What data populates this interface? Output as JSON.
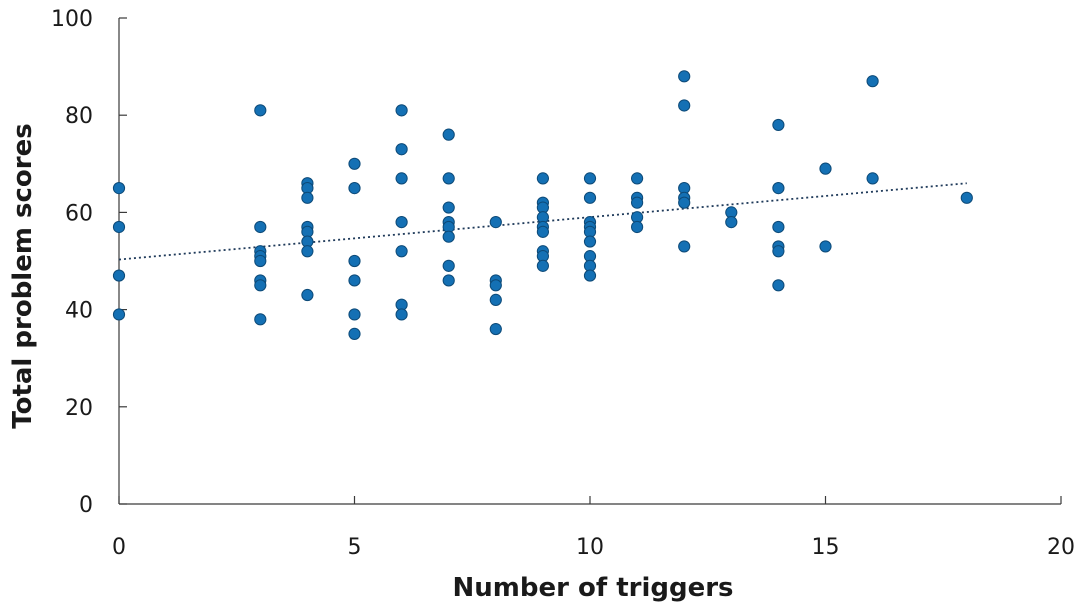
{
  "chart_data": {
    "type": "scatter",
    "xlabel": "Number of triggers",
    "ylabel": "Total problem scores",
    "xlim": [
      0,
      20
    ],
    "ylim": [
      0,
      100
    ],
    "xticks": [
      0,
      5,
      10,
      15,
      20
    ],
    "yticks": [
      0,
      20,
      40,
      60,
      80,
      100
    ],
    "grid": false,
    "marker_color": "#1470b4",
    "marker_edge_color": "#0d4a78",
    "trendline": {
      "style": "dotted",
      "color": "#1f3a5a",
      "start": [
        0,
        50.3
      ],
      "end": [
        18,
        66
      ]
    },
    "points": [
      {
        "x": 0,
        "y": 65
      },
      {
        "x": 0,
        "y": 57
      },
      {
        "x": 0,
        "y": 47
      },
      {
        "x": 0,
        "y": 39
      },
      {
        "x": 3,
        "y": 81
      },
      {
        "x": 3,
        "y": 57
      },
      {
        "x": 3,
        "y": 52
      },
      {
        "x": 3,
        "y": 51
      },
      {
        "x": 3,
        "y": 50
      },
      {
        "x": 3,
        "y": 46
      },
      {
        "x": 3,
        "y": 45
      },
      {
        "x": 3,
        "y": 38
      },
      {
        "x": 4,
        "y": 66
      },
      {
        "x": 4,
        "y": 65
      },
      {
        "x": 4,
        "y": 63
      },
      {
        "x": 4,
        "y": 57
      },
      {
        "x": 4,
        "y": 56
      },
      {
        "x": 4,
        "y": 54
      },
      {
        "x": 4,
        "y": 52
      },
      {
        "x": 4,
        "y": 43
      },
      {
        "x": 5,
        "y": 70
      },
      {
        "x": 5,
        "y": 65
      },
      {
        "x": 5,
        "y": 50
      },
      {
        "x": 5,
        "y": 46
      },
      {
        "x": 5,
        "y": 39
      },
      {
        "x": 5,
        "y": 35
      },
      {
        "x": 6,
        "y": 81
      },
      {
        "x": 6,
        "y": 73
      },
      {
        "x": 6,
        "y": 67
      },
      {
        "x": 6,
        "y": 58
      },
      {
        "x": 6,
        "y": 52
      },
      {
        "x": 6,
        "y": 41
      },
      {
        "x": 6,
        "y": 39
      },
      {
        "x": 7,
        "y": 76
      },
      {
        "x": 7,
        "y": 67
      },
      {
        "x": 7,
        "y": 61
      },
      {
        "x": 7,
        "y": 58
      },
      {
        "x": 7,
        "y": 57
      },
      {
        "x": 7,
        "y": 55
      },
      {
        "x": 7,
        "y": 49
      },
      {
        "x": 7,
        "y": 46
      },
      {
        "x": 8,
        "y": 58
      },
      {
        "x": 8,
        "y": 46
      },
      {
        "x": 8,
        "y": 45
      },
      {
        "x": 8,
        "y": 42
      },
      {
        "x": 8,
        "y": 36
      },
      {
        "x": 9,
        "y": 67
      },
      {
        "x": 9,
        "y": 62
      },
      {
        "x": 9,
        "y": 61
      },
      {
        "x": 9,
        "y": 59
      },
      {
        "x": 9,
        "y": 57
      },
      {
        "x": 9,
        "y": 56
      },
      {
        "x": 9,
        "y": 52
      },
      {
        "x": 9,
        "y": 51
      },
      {
        "x": 9,
        "y": 49
      },
      {
        "x": 10,
        "y": 67
      },
      {
        "x": 10,
        "y": 63
      },
      {
        "x": 10,
        "y": 58
      },
      {
        "x": 10,
        "y": 57
      },
      {
        "x": 10,
        "y": 56
      },
      {
        "x": 10,
        "y": 54
      },
      {
        "x": 10,
        "y": 51
      },
      {
        "x": 10,
        "y": 49
      },
      {
        "x": 10,
        "y": 47
      },
      {
        "x": 11,
        "y": 67
      },
      {
        "x": 11,
        "y": 63
      },
      {
        "x": 11,
        "y": 62
      },
      {
        "x": 11,
        "y": 59
      },
      {
        "x": 11,
        "y": 57
      },
      {
        "x": 12,
        "y": 88
      },
      {
        "x": 12,
        "y": 82
      },
      {
        "x": 12,
        "y": 65
      },
      {
        "x": 12,
        "y": 63
      },
      {
        "x": 12,
        "y": 62
      },
      {
        "x": 12,
        "y": 53
      },
      {
        "x": 13,
        "y": 60
      },
      {
        "x": 13,
        "y": 58
      },
      {
        "x": 14,
        "y": 78
      },
      {
        "x": 14,
        "y": 65
      },
      {
        "x": 14,
        "y": 57
      },
      {
        "x": 14,
        "y": 53
      },
      {
        "x": 14,
        "y": 52
      },
      {
        "x": 14,
        "y": 45
      },
      {
        "x": 15,
        "y": 69
      },
      {
        "x": 15,
        "y": 53
      },
      {
        "x": 16,
        "y": 87
      },
      {
        "x": 16,
        "y": 67
      },
      {
        "x": 18,
        "y": 63
      }
    ]
  }
}
